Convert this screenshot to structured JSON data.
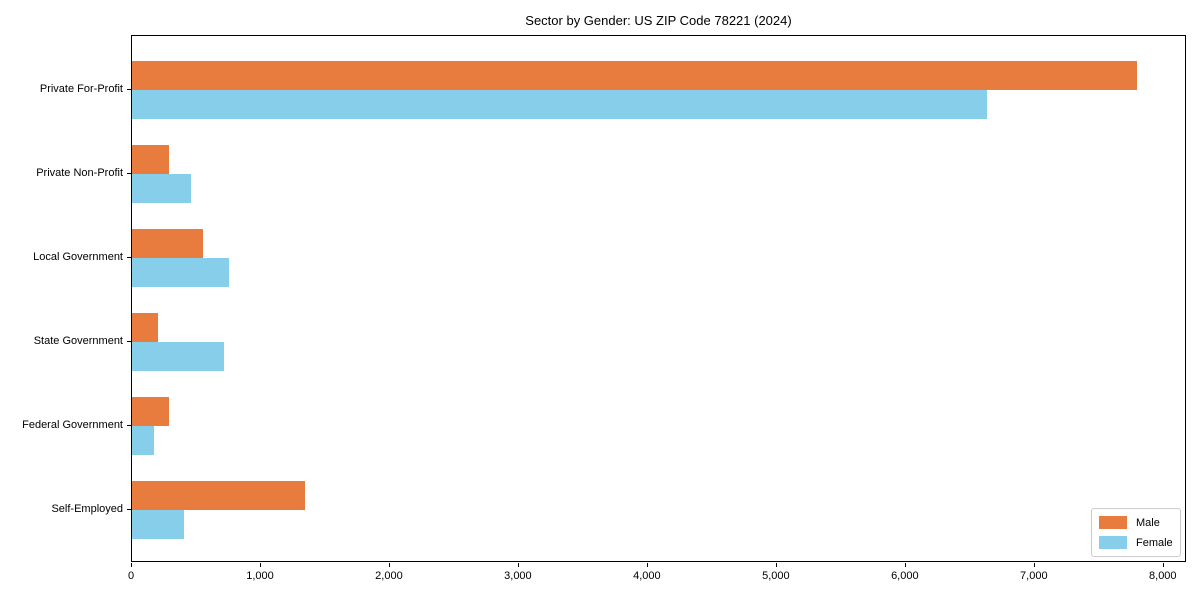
{
  "title": "Sector by Gender: US ZIP Code 78221 (2024)",
  "chart_data": {
    "type": "bar",
    "orientation": "horizontal",
    "title": "Sector by Gender: US ZIP Code 78221 (2024)",
    "xlabel": "",
    "ylabel": "",
    "grid": false,
    "categories": [
      "Private For-Profit",
      "Private Non-Profit",
      "Local Government",
      "State Government",
      "Federal Government",
      "Self-Employed"
    ],
    "series": [
      {
        "name": "Male",
        "color": "#e87c3e",
        "values": [
          7790,
          290,
          550,
          200,
          290,
          1340
        ]
      },
      {
        "name": "Female",
        "color": "#87ceeb",
        "values": [
          6630,
          460,
          750,
          710,
          170,
          400
        ]
      }
    ],
    "xlim": [
      0,
      8180
    ],
    "x_ticks": [
      0,
      1000,
      2000,
      3000,
      4000,
      5000,
      6000,
      7000,
      8000
    ],
    "x_tick_labels": [
      "0",
      "1,000",
      "2,000",
      "3,000",
      "4,000",
      "5,000",
      "6,000",
      "7,000",
      "8,000"
    ],
    "legend": {
      "position": "lower right",
      "entries": [
        "Male",
        "Female"
      ]
    }
  }
}
